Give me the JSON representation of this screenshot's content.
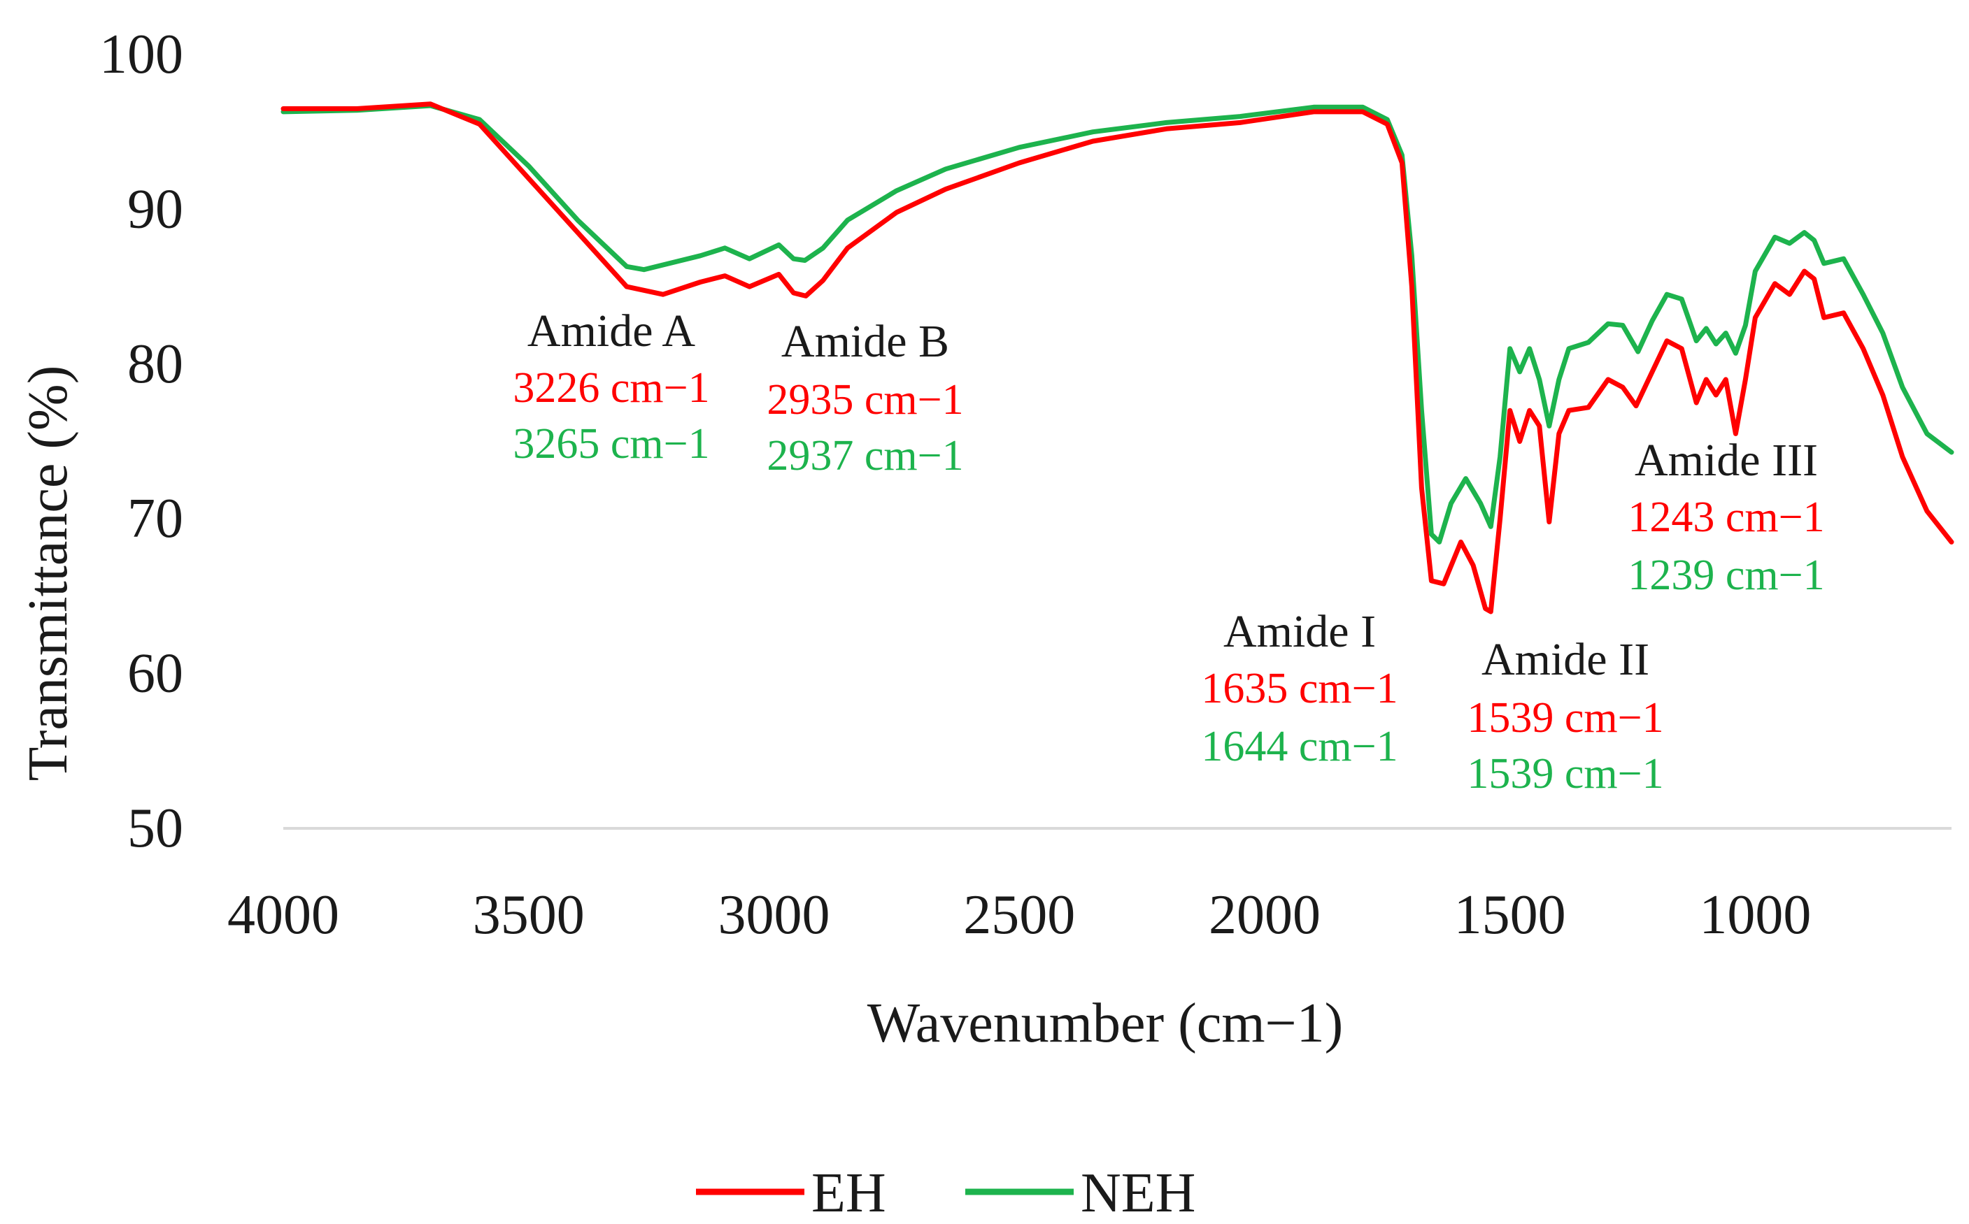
{
  "chart_data": {
    "type": "line",
    "xlabel": "Wavenumber (cm−1)",
    "ylabel": "Transmittance (%)",
    "xlim": [
      4000,
      600
    ],
    "ylim": [
      50,
      100
    ],
    "x_reversed": true,
    "x_ticks": [
      "4000",
      "3500",
      "3000",
      "2500",
      "2000",
      "1500",
      "1000"
    ],
    "x_tick_values": [
      4000,
      3500,
      3000,
      2500,
      2000,
      1500,
      1000
    ],
    "y_ticks": [
      "50",
      "60",
      "70",
      "80",
      "90",
      "100"
    ],
    "y_tick_values": [
      50,
      60,
      70,
      80,
      90,
      100
    ],
    "grid": "baseline only",
    "legend_position": "bottom-center",
    "series": [
      {
        "name": "EH",
        "color": "#ff0000",
        "points": [
          [
            4000,
            96.5
          ],
          [
            3850,
            96.5
          ],
          [
            3700,
            96.8
          ],
          [
            3600,
            95.5
          ],
          [
            3500,
            92
          ],
          [
            3400,
            88.5
          ],
          [
            3300,
            85
          ],
          [
            3226,
            84.5
          ],
          [
            3150,
            85.3
          ],
          [
            3100,
            85.7
          ],
          [
            3050,
            85
          ],
          [
            2990,
            85.8
          ],
          [
            2960,
            84.6
          ],
          [
            2935,
            84.4
          ],
          [
            2900,
            85.4
          ],
          [
            2850,
            87.5
          ],
          [
            2750,
            89.8
          ],
          [
            2650,
            91.3
          ],
          [
            2500,
            93
          ],
          [
            2350,
            94.4
          ],
          [
            2200,
            95.2
          ],
          [
            2050,
            95.6
          ],
          [
            1900,
            96.3
          ],
          [
            1800,
            96.3
          ],
          [
            1750,
            95.5
          ],
          [
            1720,
            93
          ],
          [
            1700,
            85
          ],
          [
            1680,
            72
          ],
          [
            1660,
            66
          ],
          [
            1635,
            65.8
          ],
          [
            1600,
            68.5
          ],
          [
            1575,
            67
          ],
          [
            1550,
            64.2
          ],
          [
            1539,
            64
          ],
          [
            1520,
            70
          ],
          [
            1500,
            77
          ],
          [
            1480,
            75
          ],
          [
            1460,
            77
          ],
          [
            1440,
            76
          ],
          [
            1420,
            69.8
          ],
          [
            1400,
            75.5
          ],
          [
            1380,
            77
          ],
          [
            1340,
            77.2
          ],
          [
            1300,
            79
          ],
          [
            1270,
            78.5
          ],
          [
            1243,
            77.3
          ],
          [
            1210,
            79.5
          ],
          [
            1180,
            81.5
          ],
          [
            1150,
            81
          ],
          [
            1120,
            77.5
          ],
          [
            1100,
            79
          ],
          [
            1080,
            78
          ],
          [
            1060,
            79
          ],
          [
            1040,
            75.5
          ],
          [
            1020,
            79
          ],
          [
            1000,
            83
          ],
          [
            960,
            85.2
          ],
          [
            930,
            84.5
          ],
          [
            900,
            86
          ],
          [
            880,
            85.5
          ],
          [
            860,
            83
          ],
          [
            820,
            83.3
          ],
          [
            780,
            81
          ],
          [
            740,
            78
          ],
          [
            700,
            74
          ],
          [
            650,
            70.5
          ],
          [
            600,
            68.5
          ]
        ]
      },
      {
        "name": "NEH",
        "color": "#1db34d",
        "points": [
          [
            4000,
            96.3
          ],
          [
            3850,
            96.4
          ],
          [
            3700,
            96.7
          ],
          [
            3600,
            95.8
          ],
          [
            3500,
            92.8
          ],
          [
            3400,
            89.3
          ],
          [
            3300,
            86.3
          ],
          [
            3265,
            86.1
          ],
          [
            3150,
            87
          ],
          [
            3100,
            87.5
          ],
          [
            3050,
            86.8
          ],
          [
            2990,
            87.7
          ],
          [
            2960,
            86.8
          ],
          [
            2937,
            86.7
          ],
          [
            2900,
            87.5
          ],
          [
            2850,
            89.3
          ],
          [
            2750,
            91.2
          ],
          [
            2650,
            92.6
          ],
          [
            2500,
            94
          ],
          [
            2350,
            95
          ],
          [
            2200,
            95.6
          ],
          [
            2050,
            96
          ],
          [
            1900,
            96.6
          ],
          [
            1800,
            96.6
          ],
          [
            1750,
            95.8
          ],
          [
            1720,
            93.5
          ],
          [
            1700,
            87
          ],
          [
            1680,
            77
          ],
          [
            1660,
            69
          ],
          [
            1644,
            68.5
          ],
          [
            1620,
            71
          ],
          [
            1590,
            72.6
          ],
          [
            1560,
            71
          ],
          [
            1539,
            69.5
          ],
          [
            1520,
            74
          ],
          [
            1500,
            81
          ],
          [
            1480,
            79.5
          ],
          [
            1460,
            81
          ],
          [
            1440,
            79
          ],
          [
            1420,
            76
          ],
          [
            1400,
            79
          ],
          [
            1380,
            81
          ],
          [
            1340,
            81.4
          ],
          [
            1300,
            82.6
          ],
          [
            1270,
            82.5
          ],
          [
            1239,
            80.8
          ],
          [
            1210,
            82.8
          ],
          [
            1180,
            84.5
          ],
          [
            1150,
            84.2
          ],
          [
            1120,
            81.5
          ],
          [
            1100,
            82.3
          ],
          [
            1080,
            81.3
          ],
          [
            1060,
            82
          ],
          [
            1040,
            80.7
          ],
          [
            1020,
            82.5
          ],
          [
            1000,
            86
          ],
          [
            960,
            88.2
          ],
          [
            930,
            87.8
          ],
          [
            900,
            88.5
          ],
          [
            880,
            88
          ],
          [
            860,
            86.5
          ],
          [
            820,
            86.8
          ],
          [
            780,
            84.5
          ],
          [
            740,
            82
          ],
          [
            700,
            78.5
          ],
          [
            650,
            75.5
          ],
          [
            600,
            74.3
          ]
        ]
      }
    ],
    "annotations": [
      {
        "title": "Amide A",
        "eh": "3226 cm−1",
        "neh": "3265 cm−1"
      },
      {
        "title": "Amide B",
        "eh": "2935 cm−1",
        "neh": "2937 cm−1"
      },
      {
        "title": "Amide I",
        "eh": "1635 cm−1",
        "neh": "1644 cm−1"
      },
      {
        "title": "Amide II",
        "eh": "1539 cm−1",
        "neh": "1539 cm−1"
      },
      {
        "title": "Amide III",
        "eh": "1243 cm−1",
        "neh": "1239 cm−1"
      }
    ]
  }
}
